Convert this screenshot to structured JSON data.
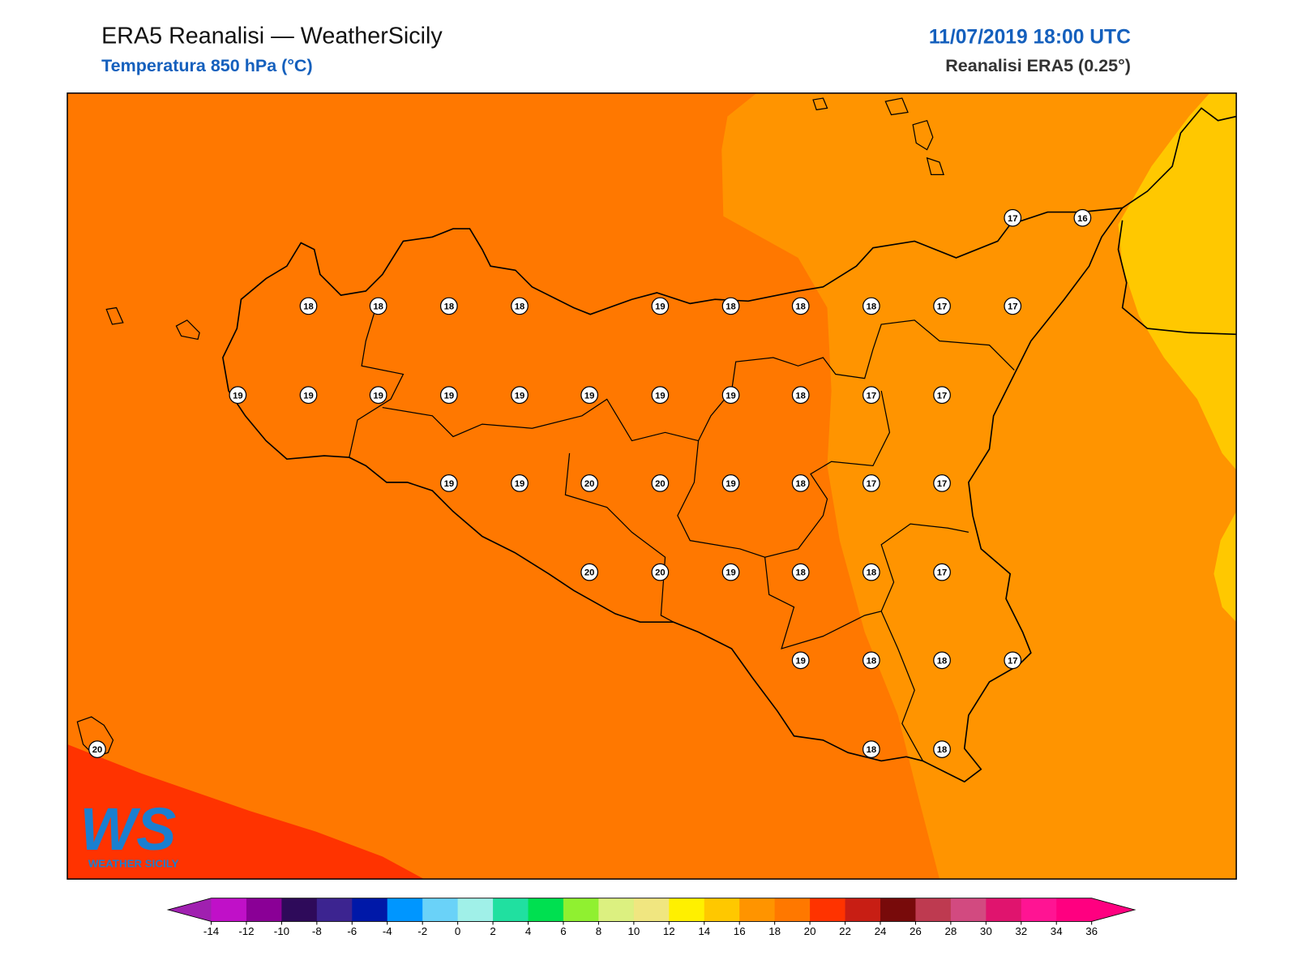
{
  "header": {
    "title": "ERA5 Reanalisi — WeatherSicily",
    "subtitle": "Temperatura 850 hPa (°C)",
    "datetime": "11/07/2019 18:00 UTC",
    "source": "Reanalisi ERA5 (0.25°)"
  },
  "map": {
    "stations": [
      18,
      18,
      18,
      18,
      19,
      18,
      18,
      18,
      17,
      17,
      17,
      16,
      19,
      19,
      19,
      19,
      19,
      19,
      19,
      19,
      18,
      17,
      17,
      19,
      19,
      20,
      20,
      19,
      18,
      17,
      17,
      20,
      20,
      19,
      18,
      18,
      17,
      19,
      18,
      18,
      17,
      20,
      18,
      18
    ]
  },
  "logo": {
    "mark": "WS",
    "text": "WEATHER SICILY"
  },
  "colorbar": {
    "ticks": [
      -14,
      -12,
      -10,
      -8,
      -6,
      -4,
      -2,
      0,
      2,
      4,
      6,
      8,
      10,
      12,
      14,
      16,
      18,
      20,
      22,
      24,
      26,
      28,
      30,
      32,
      34,
      36
    ],
    "under_color": "#a020b0",
    "over_color": "#ff0080",
    "colors": [
      "#c010c8",
      "#8a0096",
      "#2e0a5a",
      "#3c2490",
      "#0018a8",
      "#0096ff",
      "#6ad2f8",
      "#a0f0e8",
      "#20e0a0",
      "#00e050",
      "#90f030",
      "#dcf080",
      "#f0e680",
      "#fff000",
      "#ffc800",
      "#ff9400",
      "#ff7800",
      "#ff3300",
      "#c81e14",
      "#780a0a",
      "#be3a50",
      "#d24a80",
      "#e0146e",
      "#ff1493",
      "#ff0080"
    ]
  }
}
